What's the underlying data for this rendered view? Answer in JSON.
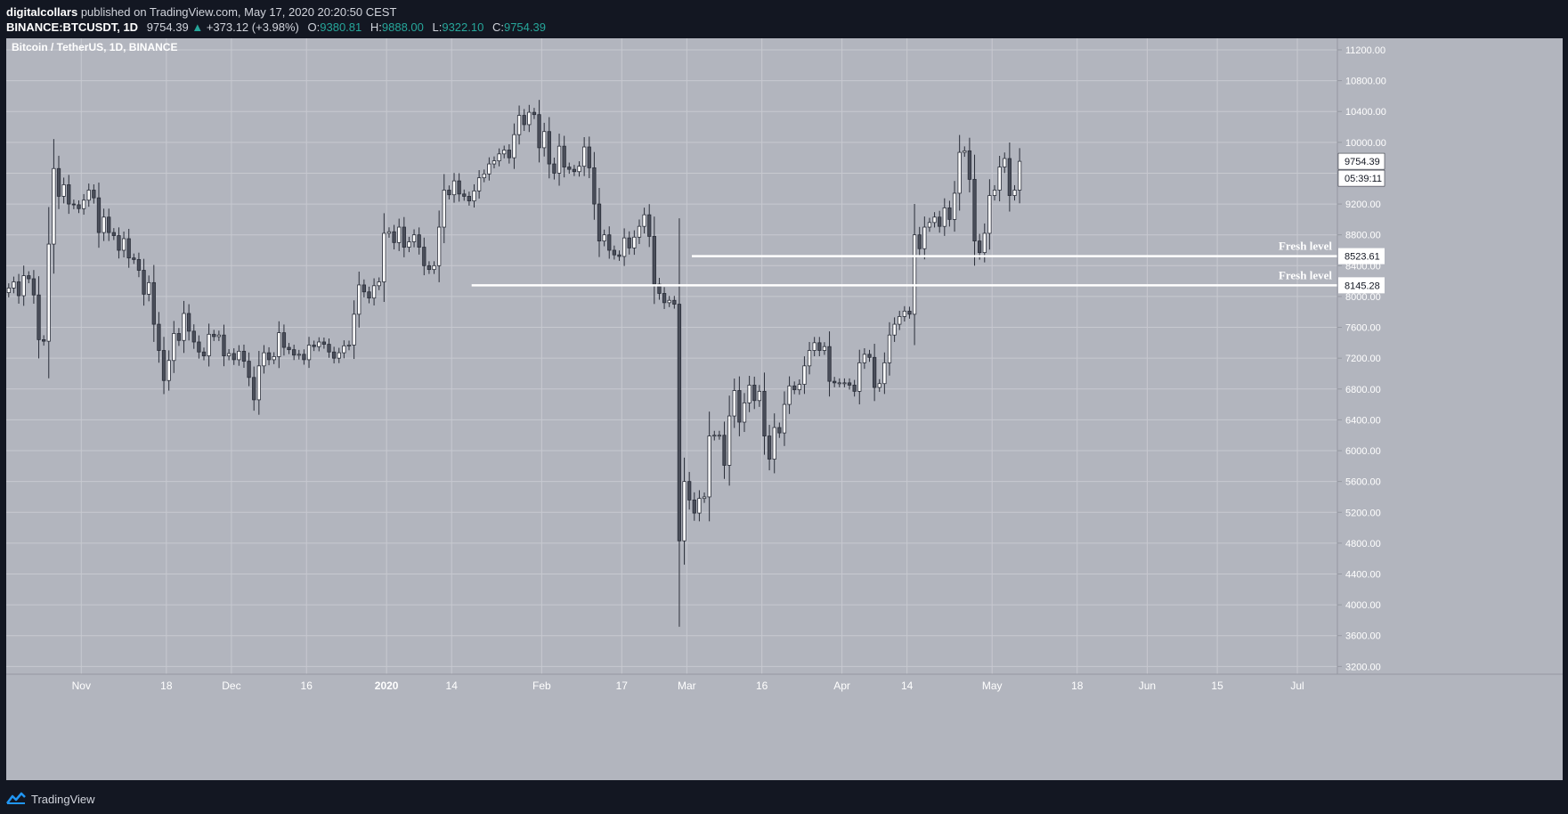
{
  "header": {
    "author": "digitalcollars",
    "published": "published on TradingView.com, May 17, 2020 20:20:50 CEST",
    "symbol": "BINANCE:BTCUSDT, 1D",
    "last": "9754.39",
    "change": "+373.12 (+3.98%)",
    "o_label": "O:",
    "o_value": "9380.81",
    "h_label": "H:",
    "h_value": "9888.00",
    "l_label": "L:",
    "l_value": "9322.10",
    "c_label": "C:",
    "c_value": "9754.39"
  },
  "footer": {
    "brand": "TradingView"
  },
  "colors": {
    "background": "#131722",
    "panel": "#b2b5be",
    "grid": "#c7c9d0",
    "candle_up": "#ffffff",
    "candle_down": "#4a4e5a",
    "wick": "#2a2e39",
    "level": "#ffffff",
    "accent_green": "#26a69a"
  },
  "chart_data": {
    "type": "candlestick",
    "title": "Bitcoin / TetherUS, 1D, BINANCE",
    "xlabel": "",
    "ylabel": "",
    "ylim": [
      3100,
      11350
    ],
    "grid": true,
    "y_ticks": [
      11200,
      10800,
      10400,
      10000,
      9600,
      9200,
      8800,
      8400,
      8000,
      7600,
      7200,
      6800,
      6400,
      6000,
      5600,
      5200,
      4800,
      4400,
      4000,
      3600,
      3200
    ],
    "x_ticks": [
      {
        "label": "Nov",
        "date": "2019-11-01",
        "bold": false
      },
      {
        "label": "18",
        "date": "2019-11-18",
        "bold": false
      },
      {
        "label": "Dec",
        "date": "2019-12-01",
        "bold": false
      },
      {
        "label": "16",
        "date": "2019-12-16",
        "bold": false
      },
      {
        "label": "2020",
        "date": "2020-01-01",
        "bold": true
      },
      {
        "label": "14",
        "date": "2020-01-14",
        "bold": false
      },
      {
        "label": "Feb",
        "date": "2020-02-01",
        "bold": false
      },
      {
        "label": "17",
        "date": "2020-02-17",
        "bold": false
      },
      {
        "label": "Mar",
        "date": "2020-03-01",
        "bold": false
      },
      {
        "label": "16",
        "date": "2020-03-16",
        "bold": false
      },
      {
        "label": "Apr",
        "date": "2020-04-01",
        "bold": false
      },
      {
        "label": "14",
        "date": "2020-04-14",
        "bold": false
      },
      {
        "label": "May",
        "date": "2020-05-01",
        "bold": false
      },
      {
        "label": "18",
        "date": "2020-05-18",
        "bold": false
      },
      {
        "label": "Jun",
        "date": "2020-06-01",
        "bold": false
      },
      {
        "label": "15",
        "date": "2020-06-15",
        "bold": false
      },
      {
        "label": "Jul",
        "date": "2020-07-01",
        "bold": false
      }
    ],
    "x_start": "2019-10-17",
    "x_end": "2020-07-09",
    "price_labels": [
      {
        "value": 9754.39,
        "text": "9754.39"
      }
    ],
    "countdown": "05:39:11",
    "levels": [
      {
        "value": 8523.61,
        "text": "8523.61",
        "label": "Fresh level",
        "from": "2020-03-02"
      },
      {
        "value": 8145.28,
        "text": "8145.28",
        "label": "Fresh level",
        "from": "2020-01-18"
      }
    ],
    "closes": [
      8110,
      8190,
      8010,
      8270,
      8230,
      8020,
      7440,
      7420,
      8680,
      9660,
      9300,
      9450,
      9200,
      9190,
      9140,
      9250,
      9380,
      9280,
      8830,
      9030,
      8830,
      8790,
      8600,
      8750,
      8500,
      8480,
      8340,
      8030,
      8180,
      7640,
      7300,
      6910,
      7170,
      7520,
      7430,
      7780,
      7550,
      7410,
      7280,
      7230,
      7510,
      7480,
      7500,
      7230,
      7260,
      7180,
      7290,
      7160,
      6950,
      6660,
      7100,
      7270,
      7180,
      7220,
      7530,
      7340,
      7310,
      7240,
      7250,
      7180,
      7370,
      7350,
      7410,
      7380,
      7280,
      7200,
      7270,
      7360,
      7370,
      7770,
      8150,
      8060,
      7980,
      8140,
      8190,
      8820,
      8840,
      8700,
      8900,
      8640,
      8710,
      8800,
      8640,
      8400,
      8350,
      8400,
      8900,
      9380,
      9320,
      9500,
      9330,
      9300,
      9240,
      9370,
      9540,
      9590,
      9720,
      9760,
      9850,
      9900,
      9800,
      10100,
      10350,
      10230,
      10390,
      10360,
      9930,
      10140,
      9720,
      9600,
      9950,
      9680,
      9650,
      9620,
      9690,
      9940,
      9670,
      9200,
      8720,
      8800,
      8600,
      8540,
      8520,
      8760,
      8630,
      8770,
      8910,
      9060,
      8780,
      8160,
      8040,
      7920,
      7950,
      7900,
      4830,
      5600,
      5360,
      5190,
      5380,
      5400,
      6190,
      6200,
      6200,
      5810,
      6450,
      6780,
      6370,
      6620,
      6850,
      6650,
      6770,
      6190,
      5890,
      6300,
      6230,
      6600,
      6840,
      6790,
      6860,
      7100,
      7300,
      7400,
      7300,
      7350,
      6900,
      6880,
      6880,
      6880,
      6850,
      6770,
      7140,
      7250,
      7210,
      6820,
      6870,
      7140,
      7500,
      7640,
      7740,
      7810,
      7770,
      8800,
      8620,
      8900,
      8960,
      9030,
      8910,
      9150,
      9000,
      9340,
      9870,
      9890,
      9520,
      8720,
      8570,
      8820,
      9310,
      9380,
      9680,
      9790,
      9310,
      9380,
      9754
    ]
  }
}
